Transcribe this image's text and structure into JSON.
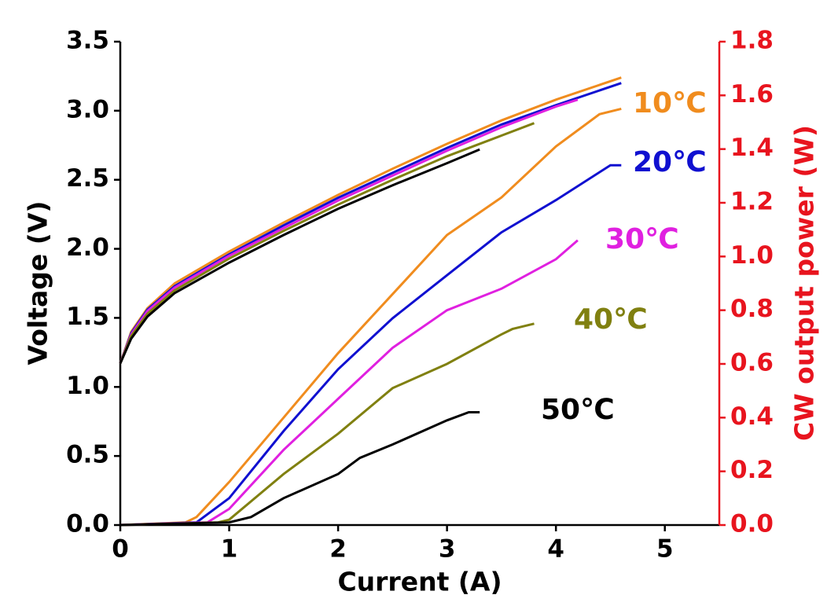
{
  "chart_data": {
    "type": "line",
    "x_label": "Current (A)",
    "y_label": "Voltage (V)",
    "y2_label": "CW output power (W)",
    "xlim": [
      0,
      5.5
    ],
    "xticks": [
      0,
      1,
      2,
      3,
      4,
      5
    ],
    "ylim": [
      0,
      3.5
    ],
    "yticks": [
      {
        "value": 0,
        "label": "0.0"
      },
      0.5,
      {
        "value": 1,
        "label": "1.0"
      },
      1.5,
      {
        "value": 2,
        "label": "2.0"
      },
      2.5,
      {
        "value": 3,
        "label": "3.0"
      },
      3.5
    ],
    "y2lim": [
      0,
      1.8
    ],
    "y2ticks": [
      {
        "value": 0,
        "label": "0.0"
      },
      0.2,
      0.4,
      0.6,
      0.8,
      {
        "value": 1,
        "label": "1.0"
      },
      1.2,
      1.4,
      1.6,
      1.8
    ],
    "y2_color": "#e8141e",
    "series": [
      {
        "color": "#f08c1e",
        "x": [
          0,
          0.1,
          0.25,
          0.5,
          1,
          1.5,
          2,
          2.5,
          3,
          3.5,
          4,
          4.6
        ],
        "values": [
          1.17,
          1.4,
          1.57,
          1.75,
          1.98,
          2.19,
          2.39,
          2.58,
          2.76,
          2.93,
          3.08,
          3.24
        ]
      },
      {
        "color": "#1010d0",
        "x": [
          0,
          0.1,
          0.25,
          0.5,
          1,
          1.5,
          2,
          2.5,
          3,
          3.5,
          4,
          4.6
        ],
        "values": [
          1.17,
          1.39,
          1.56,
          1.73,
          1.96,
          2.17,
          2.37,
          2.55,
          2.73,
          2.9,
          3.04,
          3.2
        ]
      },
      {
        "color": "#e020e0",
        "x": [
          0,
          0.1,
          0.25,
          0.5,
          1,
          1.5,
          2,
          2.5,
          3,
          3.5,
          4,
          4.2
        ],
        "values": [
          1.17,
          1.38,
          1.55,
          1.72,
          1.95,
          2.15,
          2.35,
          2.53,
          2.71,
          2.88,
          3.03,
          3.08
        ]
      },
      {
        "color": "#808010",
        "x": [
          0,
          0.1,
          0.25,
          0.5,
          1,
          1.5,
          2,
          2.5,
          3,
          3.5,
          3.8
        ],
        "values": [
          1.17,
          1.37,
          1.53,
          1.7,
          1.93,
          2.13,
          2.32,
          2.5,
          2.67,
          2.82,
          2.91
        ]
      },
      {
        "color": "#000000",
        "x": [
          0,
          0.1,
          0.25,
          0.5,
          1,
          1.5,
          2,
          2.5,
          3,
          3.3
        ],
        "values": [
          1.17,
          1.35,
          1.51,
          1.68,
          1.9,
          2.1,
          2.29,
          2.46,
          2.62,
          2.72
        ]
      },
      {
        "name": "10℃",
        "color": "#f08c1e",
        "axis": "y2",
        "x": [
          0,
          0.6,
          0.7,
          1,
          1.5,
          2,
          2.5,
          3,
          3.5,
          4,
          4.4,
          4.6
        ],
        "values": [
          0,
          0.01,
          0.03,
          0.16,
          0.4,
          0.64,
          0.86,
          1.08,
          1.22,
          1.41,
          1.53,
          1.55
        ]
      },
      {
        "name": "20℃",
        "color": "#1010d0",
        "axis": "y2",
        "x": [
          0,
          0.7,
          1,
          1.5,
          2,
          2.5,
          3,
          3.5,
          4,
          4.5,
          4.6
        ],
        "values": [
          0,
          0.01,
          0.1,
          0.35,
          0.58,
          0.77,
          0.93,
          1.09,
          1.21,
          1.34,
          1.34
        ]
      },
      {
        "name": "30℃",
        "color": "#e020e0",
        "axis": "y2",
        "x": [
          0,
          0.8,
          1,
          1.5,
          2,
          2.5,
          3,
          3.5,
          4,
          4.2
        ],
        "values": [
          0,
          0.01,
          0.06,
          0.28,
          0.47,
          0.66,
          0.8,
          0.88,
          0.99,
          1.06
        ]
      },
      {
        "name": "40℃",
        "color": "#808010",
        "axis": "y2",
        "x": [
          0,
          0.9,
          1,
          1.5,
          2,
          2.5,
          3,
          3.5,
          3.6,
          3.8
        ],
        "values": [
          0,
          0.01,
          0.02,
          0.19,
          0.34,
          0.51,
          0.6,
          0.71,
          0.73,
          0.75
        ]
      },
      {
        "name": "50℃",
        "color": "#000000",
        "axis": "y2",
        "x": [
          0,
          1,
          1.2,
          1.5,
          2,
          2.2,
          2.5,
          3,
          3.2,
          3.3
        ],
        "values": [
          0,
          0.01,
          0.03,
          0.1,
          0.19,
          0.25,
          0.3,
          0.39,
          0.42,
          0.42
        ]
      }
    ]
  }
}
